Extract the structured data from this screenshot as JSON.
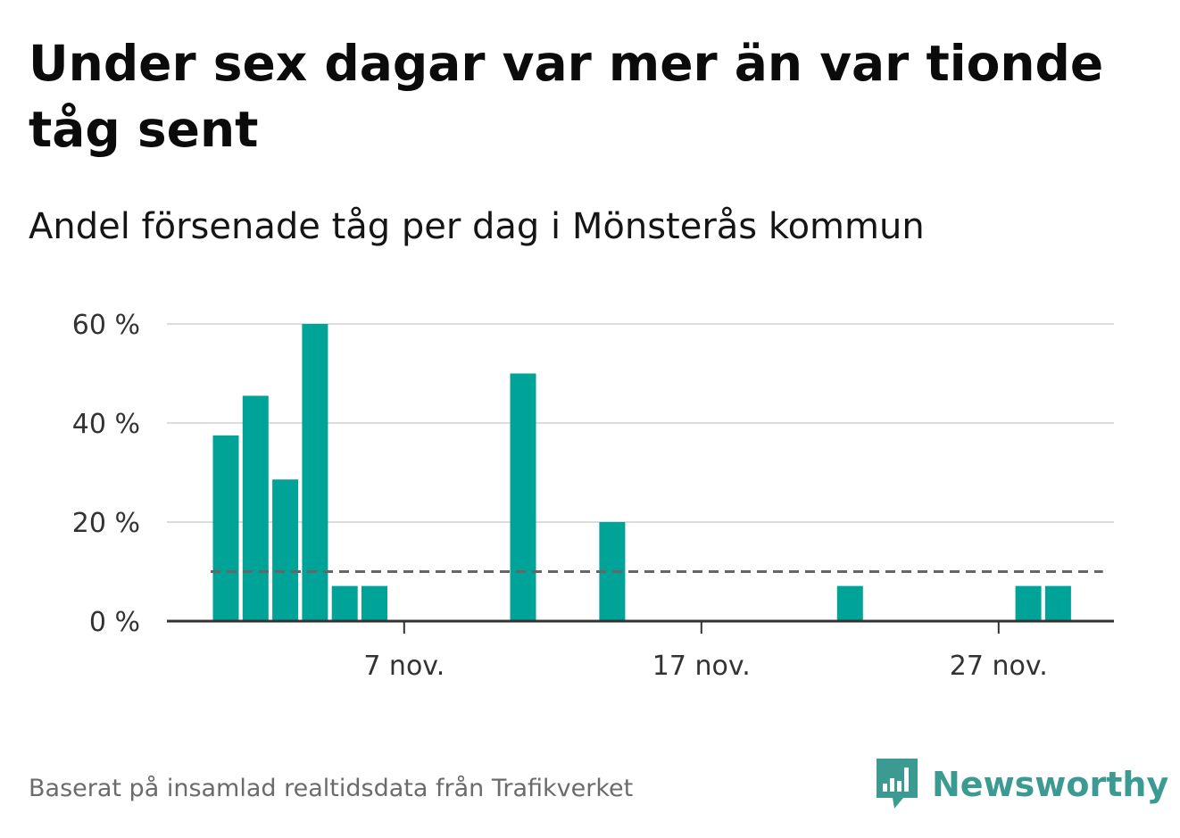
{
  "title": "Under sex dagar var mer än var tionde tåg sent",
  "subtitle": "Andel försenade tåg per dag i Mönsterås kommun",
  "footer": "Baserat på insamlad realtidsdata från Trafikverket",
  "brand": {
    "name": "Newsworthy",
    "color": "#3b9b92"
  },
  "colors": {
    "bar": "#00a398",
    "grid": "#dcdcdc",
    "axis": "#333333",
    "reference_line": "#666666"
  },
  "chart_data": {
    "type": "bar",
    "title": "Under sex dagar var mer än var tionde tåg sent",
    "subtitle": "Andel försenade tåg per dag i Mönsterås kommun",
    "xlabel": "",
    "ylabel": "",
    "x_unit": "day of November",
    "x_range": [
      1,
      30
    ],
    "ylim": [
      0,
      60
    ],
    "y_ticks": [
      0,
      20,
      40,
      60
    ],
    "y_tick_labels": [
      "0 %",
      "20 %",
      "40 %",
      "60 %"
    ],
    "x_ticks": [
      7,
      17,
      27
    ],
    "x_tick_labels": [
      "7 nov.",
      "17 nov.",
      "27 nov."
    ],
    "grid": true,
    "legend": "none",
    "reference_line": {
      "value": 10,
      "style": "dashed"
    },
    "series": [
      {
        "days": [
          1,
          2,
          3,
          4,
          5,
          6,
          7,
          8,
          9,
          10,
          11,
          12,
          13,
          14,
          15,
          16,
          17,
          18,
          19,
          20,
          21,
          22,
          23,
          24,
          25,
          26,
          27,
          28,
          29,
          30
        ],
        "values": [
          37.5,
          45.5,
          28.6,
          60,
          7.1,
          7.1,
          0,
          0,
          0,
          0,
          50,
          0,
          0,
          20,
          0,
          0,
          0,
          0,
          0,
          0,
          0,
          7.1,
          0,
          0,
          0,
          0,
          0,
          7.1,
          7.1,
          0
        ]
      }
    ]
  }
}
